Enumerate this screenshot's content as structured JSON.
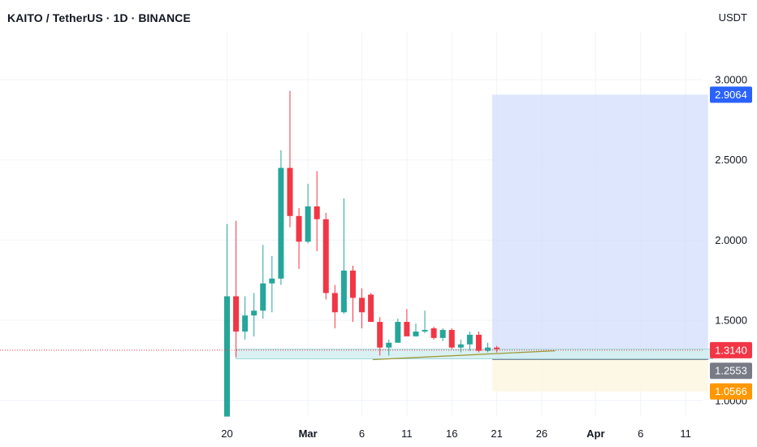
{
  "header": {
    "title": "KAITO / TetherUS · 1D · BINANCE",
    "currency": "USDT"
  },
  "colors": {
    "up": "#26a69a",
    "down": "#f23645",
    "grid": "#f0f3fa",
    "target_zone": "#cfdcfb",
    "stop_zone": "#fdf6e3",
    "target_tag": "#2962ff",
    "price_tag": "#f23645",
    "entry_tag": "#787b86",
    "stop_tag": "#ff9800",
    "support_box": "#d2eef0",
    "trendline": "#9e9a3a"
  },
  "chart_data": {
    "type": "candlestick",
    "interval": "1D",
    "y_ticks": [
      "3.0000",
      "2.5000",
      "2.0000",
      "1.5000",
      "1.0000"
    ],
    "x_ticks": [
      "20",
      "Mar",
      "6",
      "11",
      "16",
      "21",
      "26",
      "Apr",
      "6",
      "11"
    ],
    "ylim": [
      0.9,
      3.05
    ],
    "x_tick_days": [
      0,
      9,
      15,
      20,
      25,
      30,
      35,
      41,
      46,
      51
    ],
    "candles": [
      {
        "day": 0,
        "o": 0.9,
        "h": 2.1,
        "l": 0.9,
        "c": 1.65
      },
      {
        "day": 1,
        "o": 1.65,
        "h": 2.12,
        "l": 1.27,
        "c": 1.43
      },
      {
        "day": 2,
        "o": 1.43,
        "h": 1.65,
        "l": 1.38,
        "c": 1.53
      },
      {
        "day": 3,
        "o": 1.53,
        "h": 1.67,
        "l": 1.4,
        "c": 1.56
      },
      {
        "day": 4,
        "o": 1.56,
        "h": 1.97,
        "l": 1.51,
        "c": 1.73
      },
      {
        "day": 5,
        "o": 1.73,
        "h": 1.9,
        "l": 1.55,
        "c": 1.76
      },
      {
        "day": 6,
        "o": 1.76,
        "h": 2.56,
        "l": 1.72,
        "c": 2.45
      },
      {
        "day": 7,
        "o": 2.45,
        "h": 2.93,
        "l": 2.08,
        "c": 2.15
      },
      {
        "day": 8,
        "o": 2.15,
        "h": 2.2,
        "l": 1.82,
        "c": 1.99
      },
      {
        "day": 9,
        "o": 1.99,
        "h": 2.35,
        "l": 1.98,
        "c": 2.21
      },
      {
        "day": 10,
        "o": 2.21,
        "h": 2.43,
        "l": 1.93,
        "c": 2.13
      },
      {
        "day": 11,
        "o": 2.13,
        "h": 2.17,
        "l": 1.63,
        "c": 1.67
      },
      {
        "day": 12,
        "o": 1.67,
        "h": 1.72,
        "l": 1.45,
        "c": 1.55
      },
      {
        "day": 13,
        "o": 1.55,
        "h": 2.26,
        "l": 1.54,
        "c": 1.81
      },
      {
        "day": 14,
        "o": 1.81,
        "h": 1.84,
        "l": 1.49,
        "c": 1.64
      },
      {
        "day": 15,
        "o": 1.64,
        "h": 1.7,
        "l": 1.45,
        "c": 1.55
      },
      {
        "day": 16,
        "o": 1.66,
        "h": 1.67,
        "l": 1.5,
        "c": 1.49
      },
      {
        "day": 17,
        "o": 1.49,
        "h": 1.52,
        "l": 1.28,
        "c": 1.33
      },
      {
        "day": 18,
        "o": 1.33,
        "h": 1.38,
        "l": 1.28,
        "c": 1.36
      },
      {
        "day": 19,
        "o": 1.36,
        "h": 1.51,
        "l": 1.36,
        "c": 1.49
      },
      {
        "day": 20,
        "o": 1.49,
        "h": 1.57,
        "l": 1.4,
        "c": 1.4
      },
      {
        "day": 21,
        "o": 1.4,
        "h": 1.48,
        "l": 1.4,
        "c": 1.43
      },
      {
        "day": 22,
        "o": 1.43,
        "h": 1.56,
        "l": 1.42,
        "c": 1.44
      },
      {
        "day": 23,
        "o": 1.45,
        "h": 1.46,
        "l": 1.38,
        "c": 1.39
      },
      {
        "day": 24,
        "o": 1.39,
        "h": 1.45,
        "l": 1.37,
        "c": 1.44
      },
      {
        "day": 25,
        "o": 1.44,
        "h": 1.45,
        "l": 1.32,
        "c": 1.33
      },
      {
        "day": 26,
        "o": 1.33,
        "h": 1.38,
        "l": 1.3,
        "c": 1.35
      },
      {
        "day": 27,
        "o": 1.35,
        "h": 1.43,
        "l": 1.31,
        "c": 1.41
      },
      {
        "day": 28,
        "o": 1.41,
        "h": 1.43,
        "l": 1.3,
        "c": 1.31
      },
      {
        "day": 29,
        "o": 1.31,
        "h": 1.36,
        "l": 1.3,
        "c": 1.33
      },
      {
        "day": 30,
        "o": 1.33,
        "h": 1.34,
        "l": 1.3,
        "c": 1.32
      }
    ],
    "current_price": {
      "value": 1.314,
      "label": "1.3140"
    },
    "position": {
      "start_day": 29.5,
      "end_day": 53.5,
      "entry": {
        "value": 1.2553,
        "label": "1.2553"
      },
      "target": {
        "value": 2.9064,
        "label": "2.9064"
      },
      "stop": {
        "value": 1.0566,
        "label": "1.0566"
      }
    },
    "support_box": {
      "start_day": 1,
      "end_day": 54,
      "top": 1.32,
      "bottom": 1.26
    },
    "trendline": {
      "x1": 16.2,
      "y1": 1.255,
      "x2": 36.5,
      "y2": 1.31
    },
    "grid": true
  }
}
